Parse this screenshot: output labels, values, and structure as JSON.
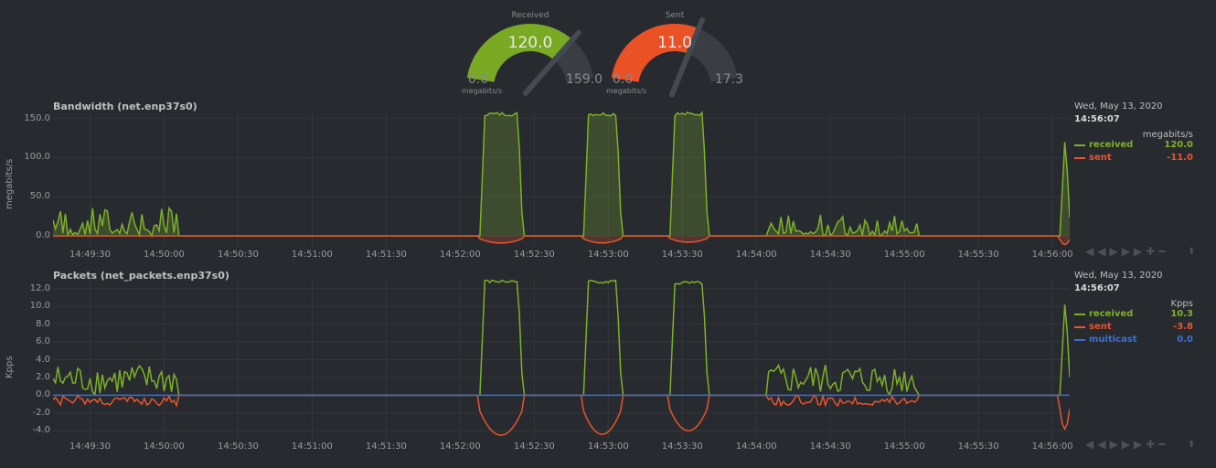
{
  "colors": {
    "received": "#7eb026",
    "sent": "#e8532d",
    "multicast": "#3a6fd0",
    "grid": "#33373c",
    "bg": "#272b30"
  },
  "gauges": [
    {
      "title": "Received",
      "value": "120.0",
      "min": "0.0",
      "max": "159.0",
      "units": "megabits/s",
      "fraction": 0.755,
      "color": "#7aa923"
    },
    {
      "title": "Sent",
      "value": "11.0",
      "min": "0.0",
      "max": "17.3",
      "units": "megabits/s",
      "fraction": 0.636,
      "color": "#ea5125"
    }
  ],
  "charts": [
    {
      "title": "Bandwidth (net.enp37s0)",
      "ylabel": "megabits/s",
      "yticks": [
        "150.0",
        "100.0",
        "50.0",
        "0.0"
      ],
      "xticks": [
        "14:49:30",
        "14:50:00",
        "14:50:30",
        "14:51:00",
        "14:51:30",
        "14:52:00",
        "14:52:30",
        "14:53:00",
        "14:53:30",
        "14:54:00",
        "14:54:30",
        "14:55:00",
        "14:55:30",
        "14:56:00"
      ],
      "legend": {
        "date": "Wed, May 13, 2020",
        "time": "14:56:07",
        "units": "megabits/s",
        "items": [
          {
            "name": "received",
            "value": "120.0"
          },
          {
            "name": "sent",
            "value": "-11.0"
          }
        ]
      }
    },
    {
      "title": "Packets (net_packets.enp37s0)",
      "ylabel": "Kpps",
      "yticks": [
        "12.0",
        "10.0",
        "8.0",
        "6.0",
        "4.0",
        "2.0",
        "0.0",
        "-2.0",
        "-4.0"
      ],
      "xticks": [
        "14:49:30",
        "14:50:00",
        "14:50:30",
        "14:51:00",
        "14:51:30",
        "14:52:00",
        "14:52:30",
        "14:53:00",
        "14:53:30",
        "14:54:00",
        "14:54:30",
        "14:55:00",
        "14:55:30",
        "14:56:00"
      ],
      "legend": {
        "date": "Wed, May 13, 2020",
        "time": "14:56:07",
        "units": "Kpps",
        "items": [
          {
            "name": "received",
            "value": "10.3"
          },
          {
            "name": "sent",
            "value": "-3.8"
          },
          {
            "name": "multicast",
            "value": "0.0"
          }
        ]
      }
    }
  ],
  "chart_data": [
    {
      "type": "area",
      "title": "Bandwidth (net.enp37s0)",
      "ylabel": "megabits/s",
      "ylim": [
        -15,
        160
      ],
      "x_range": [
        "14:49:15",
        "14:56:07"
      ],
      "series": [
        {
          "name": "received",
          "bursts": [
            [
              "14:52:08",
              "14:52:25",
              158
            ],
            [
              "14:52:50",
              "14:53:05",
              158
            ],
            [
              "14:53:25",
              "14:53:40",
              158
            ],
            [
              "14:56:03",
              "14:56:07",
              120
            ]
          ],
          "noise_windows": [
            [
              "14:49:15",
              "14:50:05",
              60
            ],
            [
              "14:54:05",
              "14:55:05",
              45
            ]
          ]
        },
        {
          "name": "sent",
          "dips": [
            [
              "14:52:08",
              "14:52:25",
              -9
            ],
            [
              "14:52:50",
              "14:53:05",
              -9
            ],
            [
              "14:53:25",
              "14:53:40",
              -8
            ],
            [
              "14:56:03",
              "14:56:07",
              -11
            ]
          ]
        }
      ]
    },
    {
      "type": "line",
      "title": "Packets (net_packets.enp37s0)",
      "ylabel": "Kpps",
      "ylim": [
        -5,
        13
      ],
      "x_range": [
        "14:49:15",
        "14:56:07"
      ],
      "series": [
        {
          "name": "received",
          "bursts": [
            [
              "14:52:08",
              "14:52:25",
              13
            ],
            [
              "14:52:50",
              "14:53:05",
              13
            ],
            [
              "14:53:25",
              "14:53:40",
              12.8
            ],
            [
              "14:56:03",
              "14:56:07",
              10.3
            ]
          ]
        },
        {
          "name": "sent",
          "dips": [
            [
              "14:52:08",
              "14:52:25",
              -4.5
            ],
            [
              "14:52:50",
              "14:53:05",
              -4.4
            ],
            [
              "14:53:25",
              "14:53:40",
              -4.0
            ],
            [
              "14:56:03",
              "14:56:07",
              -3.8
            ]
          ]
        },
        {
          "name": "multicast",
          "constant": 0.0
        }
      ]
    }
  ]
}
